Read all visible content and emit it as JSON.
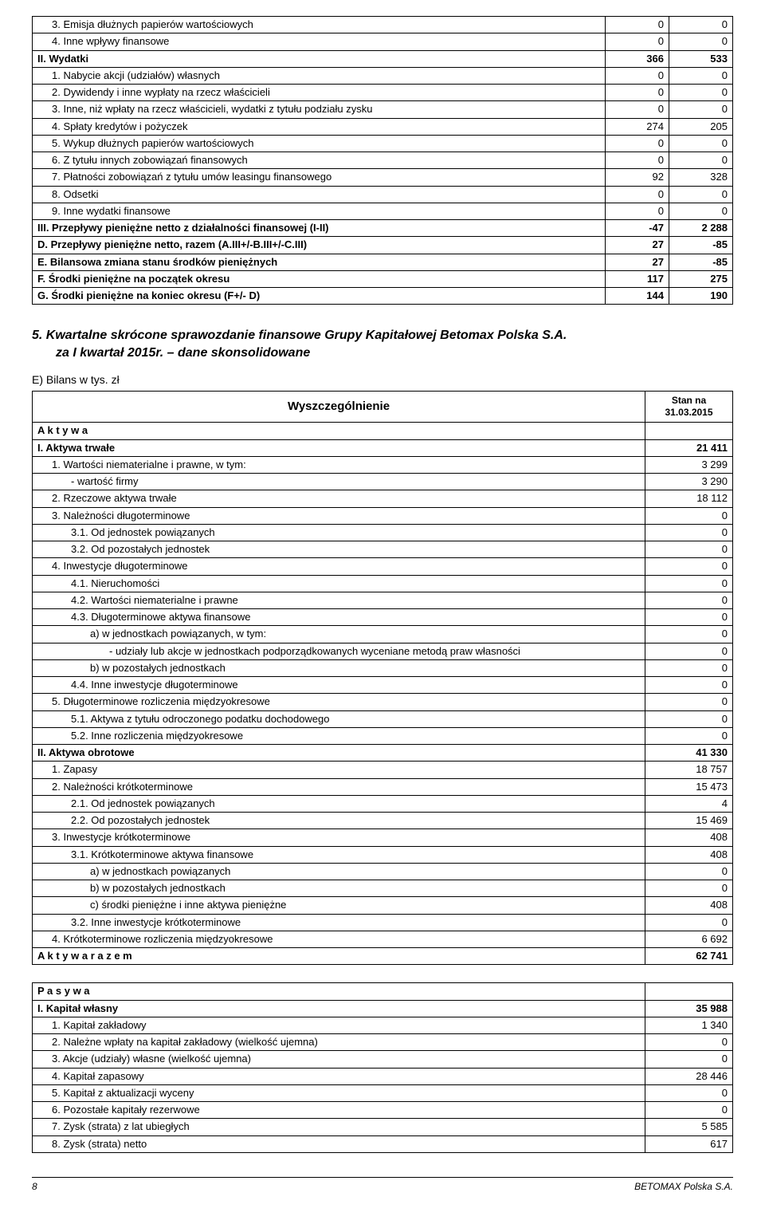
{
  "table1": {
    "rows": [
      {
        "label": "3. Emisja dłużnych papierów wartościowych",
        "v1": "0",
        "v2": "0",
        "indent": 1
      },
      {
        "label": "4. Inne wpływy finansowe",
        "v1": "0",
        "v2": "0",
        "indent": 1
      },
      {
        "label": "II. Wydatki",
        "v1": "366",
        "v2": "533",
        "indent": 0,
        "bold": true
      },
      {
        "label": "1. Nabycie akcji (udziałów) własnych",
        "v1": "0",
        "v2": "0",
        "indent": 1
      },
      {
        "label": "2. Dywidendy i inne wypłaty na rzecz właścicieli",
        "v1": "0",
        "v2": "0",
        "indent": 1
      },
      {
        "label": "3. Inne, niż wpłaty na rzecz właścicieli, wydatki z tytułu podziału zysku",
        "v1": "0",
        "v2": "0",
        "indent": 1
      },
      {
        "label": "4. Spłaty kredytów i pożyczek",
        "v1": "274",
        "v2": "205",
        "indent": 1
      },
      {
        "label": "5. Wykup dłużnych papierów wartościowych",
        "v1": "0",
        "v2": "0",
        "indent": 1
      },
      {
        "label": "6. Z tytułu innych zobowiązań finansowych",
        "v1": "0",
        "v2": "0",
        "indent": 1
      },
      {
        "label": "7. Płatności zobowiązań z tytułu umów leasingu finansowego",
        "v1": "92",
        "v2": "328",
        "indent": 1
      },
      {
        "label": "8. Odsetki",
        "v1": "0",
        "v2": "0",
        "indent": 1
      },
      {
        "label": "9. Inne wydatki finansowe",
        "v1": "0",
        "v2": "0",
        "indent": 1
      },
      {
        "label": "III. Przepływy pieniężne netto z działalności finansowej (I-II)",
        "v1": "-47",
        "v2": "2 288",
        "indent": 0,
        "bold": true
      },
      {
        "label": "D. Przepływy pieniężne netto, razem (A.III+/-B.III+/-C.III)",
        "v1": "27",
        "v2": "-85",
        "indent": 0,
        "bold": true
      },
      {
        "label": "E. Bilansowa zmiana stanu środków pieniężnych",
        "v1": "27",
        "v2": "-85",
        "indent": 0,
        "bold": true
      },
      {
        "label": "F. Środki pieniężne na początek okresu",
        "v1": "117",
        "v2": "275",
        "indent": 0,
        "bold": true
      },
      {
        "label": "G. Środki pieniężne na koniec okresu (F+/- D)",
        "v1": "144",
        "v2": "190",
        "indent": 0,
        "bold": true
      }
    ]
  },
  "section": {
    "number": "5.",
    "title": "Kwartalne skrócone sprawozdanie finansowe Grupy Kapitałowej Betomax Polska S.A.",
    "sub": "za I kwartał 2015r. – dane skonsolidowane",
    "e_label": "E)  Bilans w tys. zł"
  },
  "table2": {
    "header_left": "Wyszczególnienie",
    "header_right": "Stan na\n31.03.2015",
    "assets_rows": [
      {
        "label": "A k t y w a",
        "v": "",
        "indent": 0,
        "bold": true,
        "letterspace": false
      },
      {
        "label": "I. Aktywa trwałe",
        "v": "21 411",
        "indent": 0,
        "bold": true
      },
      {
        "label": "1. Wartości niematerialne i prawne, w tym:",
        "v": "3 299",
        "indent": 1
      },
      {
        "label": "- wartość firmy",
        "v": "3 290",
        "indent": 2
      },
      {
        "label": "2. Rzeczowe aktywa trwałe",
        "v": "18 112",
        "indent": 1
      },
      {
        "label": "3. Należności długoterminowe",
        "v": "0",
        "indent": 1
      },
      {
        "label": "3.1. Od jednostek powiązanych",
        "v": "0",
        "indent": 2
      },
      {
        "label": "3.2. Od pozostałych jednostek",
        "v": "0",
        "indent": 2
      },
      {
        "label": "4. Inwestycje długoterminowe",
        "v": "0",
        "indent": 1
      },
      {
        "label": "4.1. Nieruchomości",
        "v": "0",
        "indent": 2
      },
      {
        "label": "4.2. Wartości niematerialne i prawne",
        "v": "0",
        "indent": 2
      },
      {
        "label": "4.3. Długoterminowe aktywa finansowe",
        "v": "0",
        "indent": 2
      },
      {
        "label": "a) w jednostkach powiązanych, w tym:",
        "v": "0",
        "indent": 3
      },
      {
        "label": "- udziały lub akcje w jednostkach podporządkowanych wyceniane metodą praw własności",
        "v": "0",
        "indent": 4
      },
      {
        "label": "b) w pozostałych jednostkach",
        "v": "0",
        "indent": 3
      },
      {
        "label": "4.4. Inne inwestycje długoterminowe",
        "v": "0",
        "indent": 2
      },
      {
        "label": "5. Długoterminowe rozliczenia międzyokresowe",
        "v": "0",
        "indent": 1
      },
      {
        "label": "5.1. Aktywa z tytułu odroczonego podatku dochodowego",
        "v": "0",
        "indent": 2
      },
      {
        "label": "5.2. Inne rozliczenia międzyokresowe",
        "v": "0",
        "indent": 2
      },
      {
        "label": "II. Aktywa obrotowe",
        "v": "41 330",
        "indent": 0,
        "bold": true
      },
      {
        "label": "1. Zapasy",
        "v": "18 757",
        "indent": 1
      },
      {
        "label": "2. Należności krótkoterminowe",
        "v": "15 473",
        "indent": 1
      },
      {
        "label": "2.1. Od jednostek powiązanych",
        "v": "4",
        "indent": 2
      },
      {
        "label": "2.2. Od pozostałych jednostek",
        "v": "15 469",
        "indent": 2
      },
      {
        "label": "3. Inwestycje krótkoterminowe",
        "v": "408",
        "indent": 1
      },
      {
        "label": "3.1. Krótkoterminowe aktywa finansowe",
        "v": "408",
        "indent": 2
      },
      {
        "label": "a) w jednostkach powiązanych",
        "v": "0",
        "indent": 3
      },
      {
        "label": "b) w pozostałych jednostkach",
        "v": "0",
        "indent": 3
      },
      {
        "label": "c) środki pieniężne i inne aktywa pieniężne",
        "v": "408",
        "indent": 3
      },
      {
        "label": "3.2. Inne inwestycje krótkoterminowe",
        "v": "0",
        "indent": 2
      },
      {
        "label": "4. Krótkoterminowe rozliczenia międzyokresowe",
        "v": "6 692",
        "indent": 1
      },
      {
        "label": "A k t y w a   r a z e m",
        "v": "62 741",
        "indent": 0,
        "bold": true
      }
    ],
    "liab_rows": [
      {
        "label": "P a s y w a",
        "v": "",
        "indent": 0,
        "bold": true
      },
      {
        "label": "I. Kapitał własny",
        "v": "35 988",
        "indent": 0,
        "bold": true
      },
      {
        "label": "1. Kapitał zakładowy",
        "v": "1 340",
        "indent": 1
      },
      {
        "label": "2. Należne wpłaty na kapitał zakładowy (wielkość ujemna)",
        "v": "0",
        "indent": 1
      },
      {
        "label": "3. Akcje (udziały) własne (wielkość ujemna)",
        "v": "0",
        "indent": 1
      },
      {
        "label": "4. Kapitał zapasowy",
        "v": "28 446",
        "indent": 1
      },
      {
        "label": "5. Kapitał z aktualizacji wyceny",
        "v": "0",
        "indent": 1
      },
      {
        "label": "6. Pozostałe kapitały rezerwowe",
        "v": "0",
        "indent": 1
      },
      {
        "label": "7. Zysk (strata) z lat ubiegłych",
        "v": "5 585",
        "indent": 1
      },
      {
        "label": "8. Zysk (strata) netto",
        "v": "617",
        "indent": 1
      }
    ]
  },
  "footer": {
    "page": "8",
    "company": "BETOMAX Polska S.A."
  }
}
